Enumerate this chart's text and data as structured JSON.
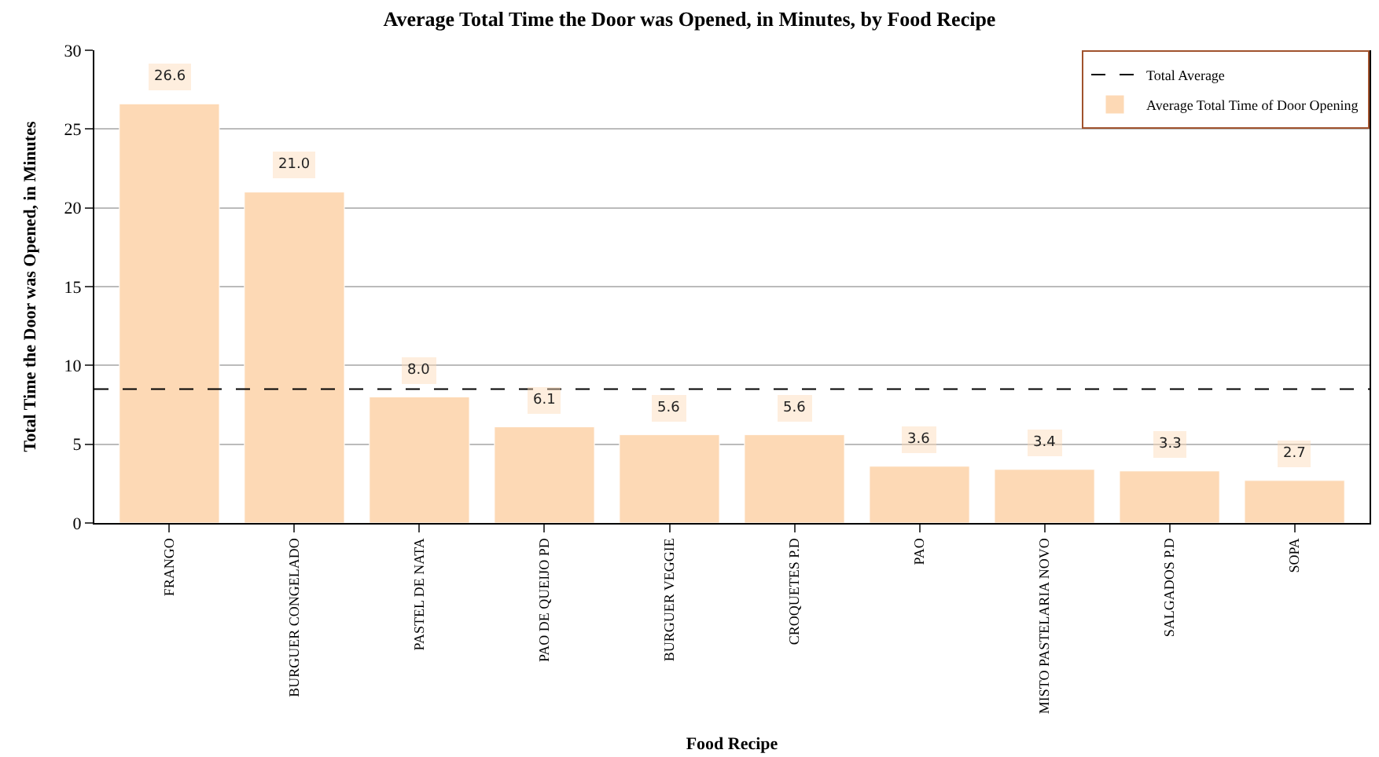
{
  "chart_data": {
    "type": "bar",
    "title": "Average Total Time the Door was Opened, in Minutes, by Food Recipe",
    "xlabel": "Food Recipe",
    "ylabel": "Total Time the Door was Opened, in Minutes",
    "categories": [
      "FRANGO",
      "BURGUER CONGELADO",
      "PASTEL DE NATA",
      "PAO DE QUEIJO PD",
      "BURGUER VEGGIE",
      "CROQUETES P.D",
      "PAO",
      "MISTO PASTELARIA NOVO",
      "SALGADOS P.D",
      "SOPA"
    ],
    "series": [
      {
        "name": "Average Total Time of Door Opening",
        "color": "#fdd9b5",
        "values": [
          26.6,
          21.0,
          8.0,
          6.1,
          5.6,
          5.6,
          3.6,
          3.4,
          3.3,
          2.7
        ]
      }
    ],
    "value_labels": [
      "26.6",
      "21.0",
      "8.0",
      "6.1",
      "5.6",
      "5.6",
      "3.6",
      "3.4",
      "3.3",
      "2.7"
    ],
    "ref_lines": [
      {
        "axis": "y",
        "value": 8.5,
        "label": "Total Average",
        "color": "#000000",
        "line_style": "dashed"
      }
    ],
    "ylim": [
      0,
      30
    ],
    "yticks": [
      0,
      5,
      10,
      15,
      20,
      25,
      30
    ],
    "grid": "y",
    "legend": "top right"
  }
}
